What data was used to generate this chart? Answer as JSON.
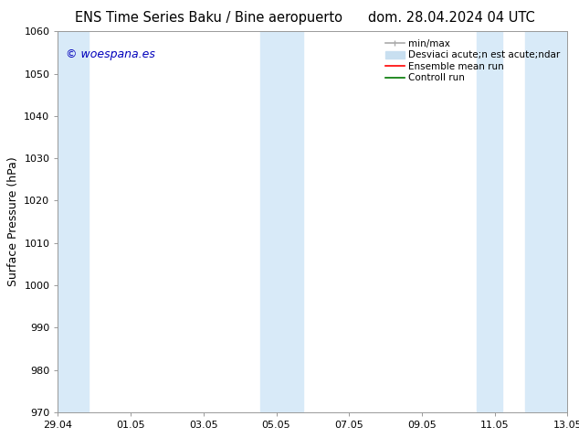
{
  "title_left": "ENS Time Series Baku / Bine aeropuerto",
  "title_right": "dom. 28.04.2024 04 UTC",
  "ylabel": "Surface Pressure (hPa)",
  "ylim": [
    970,
    1060
  ],
  "yticks": [
    970,
    980,
    990,
    1000,
    1010,
    1020,
    1030,
    1040,
    1050,
    1060
  ],
  "xtick_labels": [
    "29.04",
    "01.05",
    "03.05",
    "05.05",
    "07.05",
    "09.05",
    "11.05",
    "13.05"
  ],
  "watermark": "© woespana.es",
  "watermark_color": "#0000bb",
  "bg_color": "#ffffff",
  "shaded_band_color": "#d8eaf8",
  "legend_label_0": "min/max",
  "legend_label_1": "Desviaci acute;n est acute;ndar",
  "legend_label_2": "Ensemble mean run",
  "legend_label_3": "Controll run",
  "legend_color_0": "#aaaaaa",
  "legend_color_1": "#c8dff0",
  "legend_color_2": "#ff0000",
  "legend_color_3": "#007700",
  "title_fontsize": 10.5,
  "tick_fontsize": 8,
  "ylabel_fontsize": 9,
  "legend_fontsize": 7.5
}
